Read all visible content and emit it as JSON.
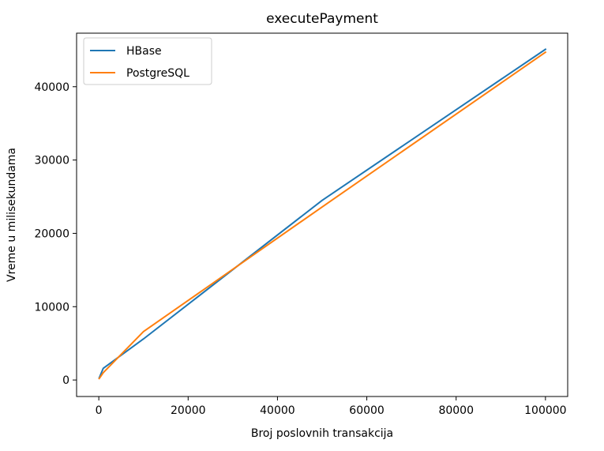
{
  "chart_data": {
    "type": "line",
    "title": "executePayment",
    "xlabel": "Broj poslovnih transakcija",
    "ylabel": "Vreme u milisekundama",
    "xlim": [
      -4975,
      104975
    ],
    "ylim": [
      -2250,
      47300
    ],
    "xticks": [
      0,
      20000,
      40000,
      60000,
      80000,
      100000
    ],
    "xtick_labels": [
      "0",
      "20000",
      "40000",
      "60000",
      "80000",
      "100000"
    ],
    "yticks": [
      0,
      10000,
      20000,
      30000,
      40000
    ],
    "ytick_labels": [
      "0",
      "10000",
      "20000",
      "30000",
      "40000"
    ],
    "grid": false,
    "legend_position": "top-left",
    "series": [
      {
        "name": "HBase",
        "color": "#1f77b4",
        "x": [
          100,
          1000,
          10000,
          50000,
          100000
        ],
        "y": [
          300,
          1600,
          5600,
          24500,
          45100
        ]
      },
      {
        "name": "PostgreSQL",
        "color": "#ff7f0e",
        "x": [
          100,
          1000,
          10000,
          50000,
          100000
        ],
        "y": [
          200,
          1000,
          6600,
          23600,
          44700
        ]
      }
    ]
  }
}
